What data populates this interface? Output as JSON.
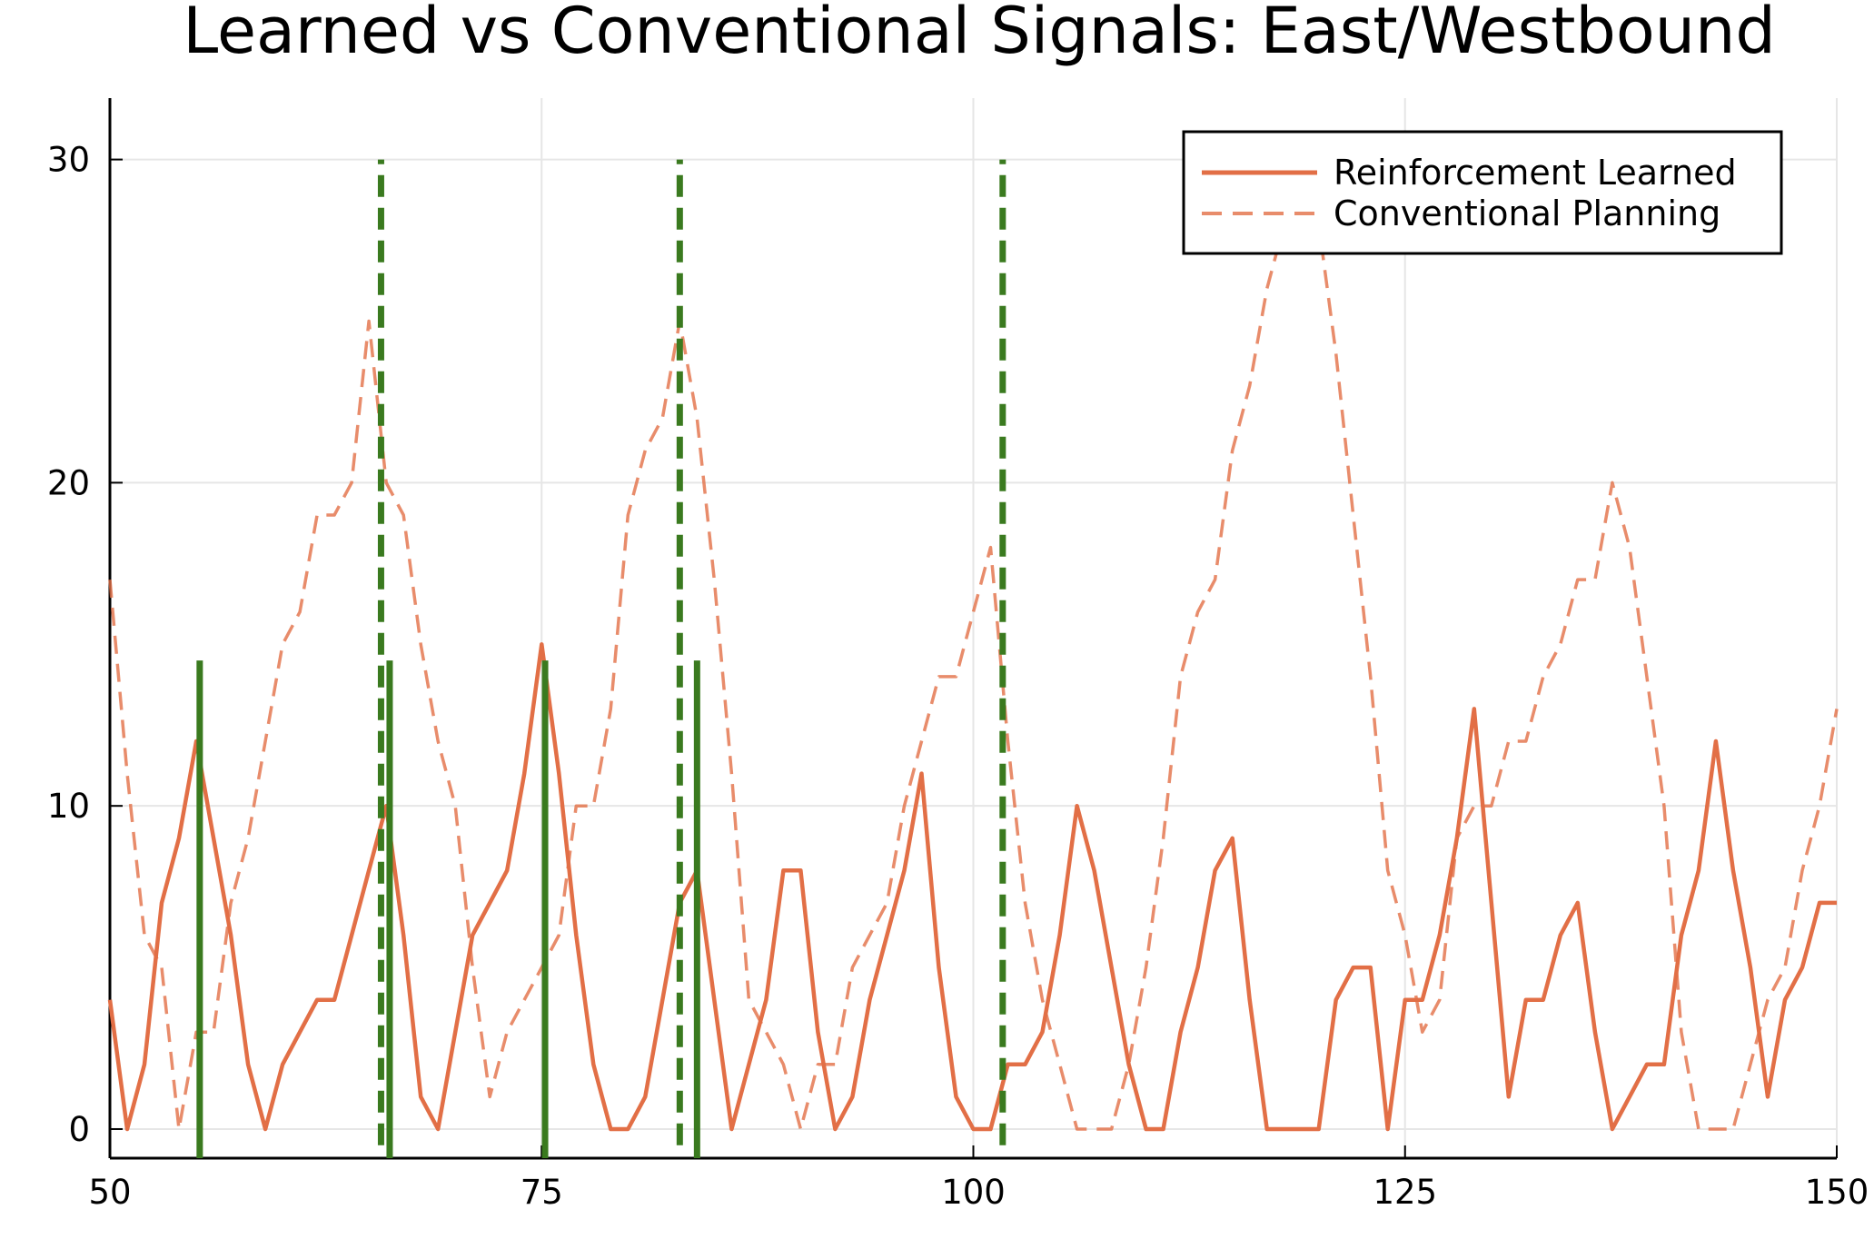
{
  "chart_data": {
    "type": "line",
    "title": "Learned vs Conventional Signals: East/Westbound",
    "xlabel": "",
    "ylabel": "",
    "xlim": [
      50,
      150
    ],
    "ylim": [
      -0.9,
      31.9
    ],
    "xticks": [
      50,
      75,
      100,
      125,
      150
    ],
    "yticks": [
      0,
      10,
      20,
      30
    ],
    "grid": true,
    "legend_position": "top-right",
    "colors": {
      "series": "#e26f46",
      "markers": "#3a7a1f"
    },
    "series": [
      {
        "name": "Reinforcement Learned",
        "style": "solid",
        "x": [
          50,
          51,
          52,
          53,
          54,
          55,
          56,
          57,
          58,
          59,
          60,
          61,
          62,
          63,
          64,
          65,
          66,
          67,
          68,
          69,
          70,
          71,
          72,
          73,
          74,
          75,
          76,
          77,
          78,
          79,
          80,
          81,
          82,
          83,
          84,
          85,
          86,
          87,
          88,
          89,
          90,
          91,
          92,
          93,
          94,
          95,
          96,
          97,
          98,
          99,
          100,
          101,
          102,
          103,
          104,
          105,
          106,
          107,
          108,
          109,
          110,
          111,
          112,
          113,
          114,
          115,
          116,
          117,
          118,
          119,
          120,
          121,
          122,
          123,
          124,
          125,
          126,
          127,
          128,
          129,
          130,
          131,
          132,
          133,
          134,
          135,
          136,
          137,
          138,
          139,
          140,
          141,
          142,
          143,
          144,
          145,
          146,
          147,
          148,
          149,
          150
        ],
        "y": [
          4,
          0,
          2,
          7,
          9,
          12,
          9,
          6,
          2,
          0,
          2,
          3,
          4,
          4,
          6,
          8,
          10,
          6,
          1,
          0,
          3,
          6,
          7,
          8,
          11,
          15,
          11,
          6,
          2,
          0,
          0,
          1,
          4,
          7,
          8,
          4,
          0,
          2,
          4,
          8,
          8,
          3,
          0,
          1,
          4,
          6,
          8,
          11,
          5,
          1,
          0,
          0,
          2,
          2,
          3,
          6,
          10,
          8,
          5,
          2,
          0,
          0,
          3,
          5,
          8,
          9,
          4,
          0,
          0,
          0,
          0,
          4,
          5,
          5,
          0,
          4,
          4,
          6,
          9,
          13,
          7,
          1,
          4,
          4,
          6,
          7,
          3,
          0,
          1,
          2,
          2,
          6,
          8,
          12,
          8,
          5,
          1,
          4,
          5,
          7,
          7
        ]
      },
      {
        "name": "Conventional Planning",
        "style": "dashed",
        "x": [
          50,
          51,
          52,
          53,
          54,
          55,
          56,
          57,
          58,
          59,
          60,
          61,
          62,
          63,
          64,
          65,
          66,
          67,
          68,
          69,
          70,
          71,
          72,
          73,
          74,
          75,
          76,
          77,
          78,
          79,
          80,
          81,
          82,
          83,
          84,
          85,
          86,
          87,
          88,
          89,
          90,
          91,
          92,
          93,
          94,
          95,
          96,
          97,
          98,
          99,
          100,
          101,
          102,
          103,
          104,
          105,
          106,
          107,
          108,
          109,
          110,
          111,
          112,
          113,
          114,
          115,
          116,
          117,
          118,
          119,
          120,
          121,
          122,
          123,
          124,
          125,
          126,
          127,
          128,
          129,
          130,
          131,
          132,
          133,
          134,
          135,
          136,
          137,
          138,
          139,
          140,
          141,
          142,
          143,
          144,
          145,
          146,
          147,
          148,
          149,
          150
        ],
        "y": [
          17,
          11,
          6,
          5,
          0,
          3,
          3,
          7,
          9,
          12,
          15,
          16,
          19,
          19,
          20,
          25,
          20,
          19,
          15,
          12,
          10,
          5,
          1,
          3,
          4,
          5,
          6,
          10,
          10,
          13,
          19,
          21,
          22,
          25,
          22,
          17,
          11,
          4,
          3,
          2,
          0,
          2,
          2,
          5,
          6,
          7,
          10,
          12,
          14,
          14,
          16,
          18,
          12,
          7,
          4,
          2,
          0,
          0,
          0,
          2,
          5,
          9,
          14,
          16,
          17,
          21,
          23,
          26,
          28,
          31,
          28,
          24,
          19,
          14,
          8,
          6,
          3,
          4,
          9,
          10,
          10,
          12,
          12,
          14,
          15,
          17,
          17,
          20,
          18,
          14,
          10,
          3,
          0,
          0,
          0,
          2,
          4,
          5,
          8,
          10,
          13
        ]
      }
    ],
    "markers": [
      {
        "style": "solid",
        "x": [
          55.2,
          66.2,
          75.2,
          84.0
        ],
        "ymin": -0.9,
        "ymax": 14.5
      },
      {
        "style": "dashed",
        "x": [
          65.7,
          83.0,
          101.7
        ],
        "ymin": -0.5,
        "ymax": 30.0
      }
    ]
  }
}
